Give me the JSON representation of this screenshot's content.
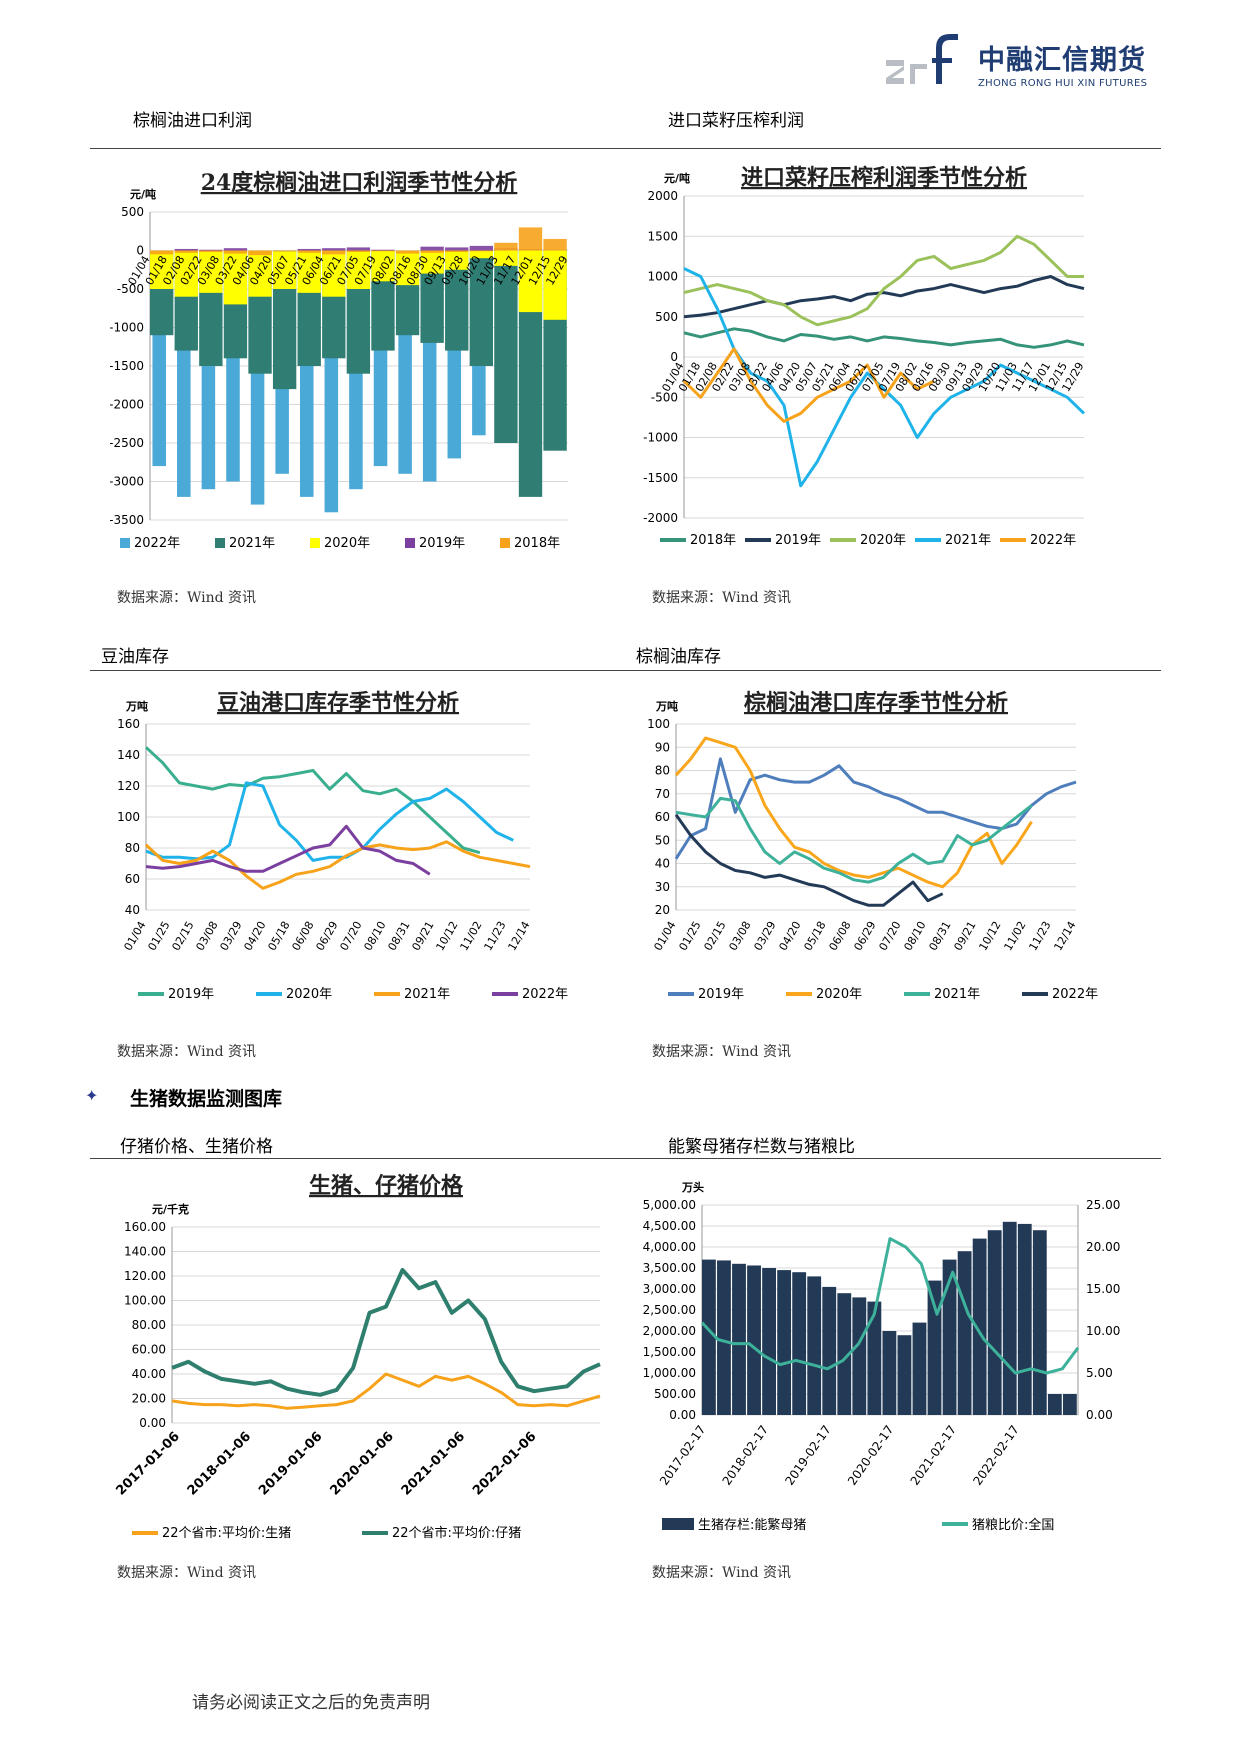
{
  "logo": {
    "cn": "中融汇信期货",
    "en": "ZHONG RONG HUI XIN FUTURES"
  },
  "sections": {
    "s1": "棕榈油进口利润",
    "s2": "进口菜籽压榨利润",
    "s3": "豆油库存",
    "s4": "棕榈油库存",
    "s5": "仔猪价格、生猪价格",
    "s6": "能繁母猪存栏数与猪粮比"
  },
  "heading": "生猪数据监测图库",
  "source": "数据来源：Wind 资讯",
  "footer": "请务必阅读正文之后的免责声明",
  "colors": {
    "teal_dark": "#2f7d73",
    "sky": "#4aa9d6",
    "yellow": "#ffff00",
    "purple": "#7b3fa0",
    "orange": "#f7a21b",
    "green_c": "#35937a",
    "navy": "#233a57",
    "lime": "#9bc15a",
    "cyan": "#1fb3ea",
    "blue": "#4f7ebd",
    "seafoam": "#3db19a",
    "orange2": "#f9a61c"
  },
  "chart_data": [
    {
      "type": "bar",
      "title": "24度棕榈油进口利润季节性分析",
      "ylabel": "元/吨",
      "ylim": [
        -3500,
        500
      ],
      "yticks": [
        "500",
        "0",
        "-500",
        "-1000",
        "-1500",
        "-2000",
        "-2500",
        "-3000",
        "-3500"
      ],
      "xticks": [
        "01/04",
        "01/18",
        "02/08",
        "02/22",
        "03/08",
        "03/22",
        "04/06",
        "04/20",
        "05/07",
        "05/21",
        "06/04",
        "06/21",
        "07/05",
        "07/19",
        "08/02",
        "08/16",
        "08/30",
        "09/13",
        "09/28",
        "10/20",
        "11/03",
        "11/17",
        "12/01",
        "12/15",
        "12/29"
      ],
      "series": [
        {
          "name": "2022年",
          "values": [
            -2800,
            -3200,
            -3100,
            -3000,
            -3300,
            -2900,
            -3200,
            -3400,
            -3100,
            -2800,
            -2900,
            -3000,
            -2700,
            -2400,
            -1700,
            -1000,
            -300
          ]
        },
        {
          "name": "2021年",
          "values": [
            -1100,
            -1300,
            -1500,
            -1400,
            -1600,
            -1800,
            -1500,
            -1400,
            -1600,
            -1300,
            -1100,
            -1200,
            -1300,
            -1500,
            -2500,
            -3200,
            -2600
          ]
        },
        {
          "name": "2020年",
          "values": [
            -500,
            -600,
            -550,
            -700,
            -600,
            -500,
            -550,
            -600,
            -500,
            -400,
            -450,
            -300,
            -250,
            -100,
            -200,
            -800,
            -900
          ]
        },
        {
          "name": "2019年",
          "values": [
            0,
            20,
            10,
            30,
            0,
            -10,
            20,
            30,
            40,
            10,
            0,
            50,
            40,
            60,
            30,
            20,
            10
          ]
        },
        {
          "name": "2018年",
          "values": [
            -50,
            -30,
            -20,
            -40,
            -60,
            -10,
            -30,
            -50,
            -20,
            -10,
            -40,
            -30,
            -20,
            -10,
            100,
            300,
            150
          ]
        }
      ]
    },
    {
      "type": "line",
      "title": "进口菜籽压榨利润季节性分析",
      "ylabel": "元/吨",
      "ylim": [
        -2000,
        2000
      ],
      "yticks": [
        "2000",
        "1500",
        "1000",
        "500",
        "0",
        "-500",
        "-1000",
        "-1500",
        "-2000"
      ],
      "xticks": [
        "01/04",
        "01/18",
        "02/08",
        "02/22",
        "03/08",
        "03/22",
        "04/06",
        "04/20",
        "05/07",
        "05/21",
        "06/04",
        "06/21",
        "07/05",
        "07/19",
        "08/02",
        "08/16",
        "08/30",
        "09/13",
        "09/29",
        "10/20",
        "11/03",
        "11/17",
        "12/01",
        "12/15",
        "12/29"
      ],
      "series": [
        {
          "name": "2018年",
          "values": [
            300,
            250,
            300,
            350,
            320,
            250,
            200,
            280,
            260,
            220,
            250,
            200,
            250,
            230,
            200,
            180,
            150,
            180,
            200,
            220,
            150,
            120,
            150,
            200,
            150
          ]
        },
        {
          "name": "2019年",
          "values": [
            500,
            520,
            550,
            600,
            650,
            700,
            650,
            700,
            720,
            750,
            700,
            780,
            800,
            760,
            820,
            850,
            900,
            850,
            800,
            850,
            880,
            950,
            1000,
            900,
            850
          ]
        },
        {
          "name": "2020年",
          "values": [
            800,
            850,
            900,
            850,
            800,
            700,
            650,
            500,
            400,
            450,
            500,
            600,
            850,
            1000,
            1200,
            1250,
            1100,
            1150,
            1200,
            1300,
            1500,
            1400,
            1200,
            1000,
            1000
          ]
        },
        {
          "name": "2021年",
          "values": [
            1100,
            1000,
            600,
            100,
            -200,
            -300,
            -600,
            -1600,
            -1300,
            -900,
            -500,
            -200,
            -400,
            -600,
            -1000,
            -700,
            -500,
            -400,
            -300,
            -100,
            -200,
            -300,
            -400,
            -500,
            -700
          ]
        },
        {
          "name": "2022年",
          "values": [
            -300,
            -500,
            -200,
            100,
            -300,
            -600,
            -800,
            -700,
            -500,
            -400,
            -300,
            -100,
            -500,
            -200,
            -400,
            -300
          ]
        }
      ]
    },
    {
      "type": "line",
      "title": "豆油港口库存季节性分析",
      "ylabel": "万吨",
      "ylim": [
        40,
        160
      ],
      "yticks": [
        "160",
        "140",
        "120",
        "100",
        "80",
        "60",
        "40"
      ],
      "xticks": [
        "01/04",
        "01/25",
        "02/15",
        "03/08",
        "03/29",
        "04/20",
        "05/18",
        "06/08",
        "06/29",
        "07/20",
        "08/10",
        "08/31",
        "09/21",
        "10/12",
        "11/02",
        "11/23",
        "12/14"
      ],
      "series": [
        {
          "name": "2019年",
          "values": [
            145,
            135,
            122,
            120,
            118,
            121,
            120,
            125,
            126,
            128,
            130,
            118,
            128,
            117,
            115,
            118,
            110,
            100,
            90,
            80,
            77
          ]
        },
        {
          "name": "2020年",
          "values": [
            78,
            74,
            74,
            73,
            74,
            82,
            122,
            120,
            95,
            85,
            72,
            74,
            74,
            80,
            92,
            102,
            110,
            112,
            118,
            110,
            100,
            90,
            85
          ]
        },
        {
          "name": "2021年",
          "values": [
            82,
            72,
            70,
            72,
            78,
            72,
            62,
            54,
            58,
            63,
            65,
            68,
            75,
            80,
            82,
            80,
            79,
            80,
            84,
            78,
            74,
            72,
            70,
            68
          ]
        },
        {
          "name": "2022年",
          "values": [
            68,
            67,
            68,
            70,
            72,
            68,
            65,
            65,
            70,
            75,
            80,
            82,
            94,
            80,
            78,
            72,
            70,
            63
          ]
        }
      ]
    },
    {
      "type": "line",
      "title": "棕榈油港口库存季节性分析",
      "ylabel": "万吨",
      "ylim": [
        20,
        100
      ],
      "yticks": [
        "100",
        "90",
        "80",
        "70",
        "60",
        "50",
        "40",
        "30",
        "20"
      ],
      "xticks": [
        "01/04",
        "01/25",
        "02/15",
        "03/08",
        "03/29",
        "04/20",
        "05/18",
        "06/08",
        "06/29",
        "07/20",
        "08/10",
        "08/31",
        "09/21",
        "10/12",
        "11/02",
        "11/23",
        "12/14"
      ],
      "series": [
        {
          "name": "2019年",
          "values": [
            42,
            52,
            55,
            85,
            62,
            76,
            78,
            76,
            75,
            75,
            78,
            82,
            75,
            73,
            70,
            68,
            65,
            62,
            62,
            60,
            58,
            56,
            55,
            57,
            65,
            70,
            73,
            75
          ]
        },
        {
          "name": "2020年",
          "values": [
            78,
            85,
            94,
            92,
            90,
            80,
            65,
            55,
            47,
            45,
            40,
            37,
            35,
            34,
            36,
            38,
            35,
            32,
            30,
            36,
            48,
            53,
            40,
            48,
            58
          ]
        },
        {
          "name": "2021年",
          "values": [
            62,
            61,
            60,
            68,
            67,
            55,
            45,
            40,
            45,
            42,
            38,
            36,
            33,
            32,
            34,
            40,
            44,
            40,
            41,
            52,
            48,
            50,
            55,
            60,
            65
          ]
        },
        {
          "name": "2022年",
          "values": [
            61,
            52,
            45,
            40,
            37,
            36,
            34,
            35,
            33,
            31,
            30,
            27,
            24,
            22,
            22,
            27,
            32,
            24,
            27
          ]
        }
      ]
    },
    {
      "type": "line",
      "title": "生猪、仔猪价格",
      "ylabel": "元/千克",
      "ylim": [
        0,
        160
      ],
      "yticks": [
        "160.00",
        "140.00",
        "120.00",
        "100.00",
        "80.00",
        "60.00",
        "40.00",
        "20.00",
        "0.00"
      ],
      "xticks": [
        "2017-01-06",
        "2018-01-06",
        "2019-01-06",
        "2020-01-06",
        "2021-01-06",
        "2022-01-06"
      ],
      "series": [
        {
          "name": "22个省市:平均价:生猪",
          "values": [
            18,
            16,
            15,
            15,
            14,
            15,
            14,
            12,
            13,
            14,
            15,
            18,
            28,
            40,
            35,
            30,
            38,
            35,
            38,
            32,
            25,
            15,
            14,
            15,
            14,
            18,
            22
          ]
        },
        {
          "name": "22个省市:平均价:仔猪",
          "values": [
            45,
            50,
            42,
            36,
            34,
            32,
            34,
            28,
            25,
            23,
            27,
            45,
            90,
            95,
            125,
            110,
            115,
            90,
            100,
            85,
            50,
            30,
            26,
            28,
            30,
            42,
            48
          ]
        }
      ]
    },
    {
      "type": "bar",
      "title": "",
      "ylabel": "万头",
      "ylim": [
        0,
        5000
      ],
      "y2lim": [
        0,
        25
      ],
      "yticks": [
        "5,000.00",
        "4,500.00",
        "4,000.00",
        "3,500.00",
        "3,000.00",
        "2,500.00",
        "2,000.00",
        "1,500.00",
        "1,000.00",
        "500.00",
        "0.00"
      ],
      "y2ticks": [
        "25.00",
        "20.00",
        "15.00",
        "10.00",
        "5.00",
        "0.00"
      ],
      "xticks": [
        "2017-02-17",
        "2018-02-17",
        "2019-02-17",
        "2020-02-17",
        "2021-02-17",
        "2022-02-17"
      ],
      "series": [
        {
          "name": "生猪存栏:能繁母猪",
          "values": [
            3700,
            3680,
            3600,
            3560,
            3500,
            3450,
            3400,
            3300,
            3050,
            2900,
            2800,
            2700,
            2000,
            1900,
            2200,
            3200,
            3700,
            3900,
            4200,
            4400,
            4600,
            4550,
            4400,
            500,
            500
          ]
        },
        {
          "name": "猪粮比价:全国",
          "values": [
            11,
            9,
            8.5,
            8.5,
            7,
            6,
            6.5,
            6,
            5.5,
            6.5,
            8.5,
            12,
            21,
            20,
            18,
            12,
            17,
            12,
            9,
            7,
            5,
            5.5,
            5,
            5.5,
            8
          ]
        }
      ]
    }
  ],
  "legends": {
    "c1": [
      "2022年",
      "2021年",
      "2020年",
      "2019年",
      "2018年"
    ],
    "c2": [
      "2018年",
      "2019年",
      "2020年",
      "2021年",
      "2022年"
    ],
    "c3": [
      "2019年",
      "2020年",
      "2021年",
      "2022年"
    ],
    "c4": [
      "2019年",
      "2020年",
      "2021年",
      "2022年"
    ],
    "c5": [
      "22个省市:平均价:生猪",
      "22个省市:平均价:仔猪"
    ],
    "c6": [
      "生猪存栏:能繁母猪",
      "猪粮比价:全国"
    ]
  }
}
